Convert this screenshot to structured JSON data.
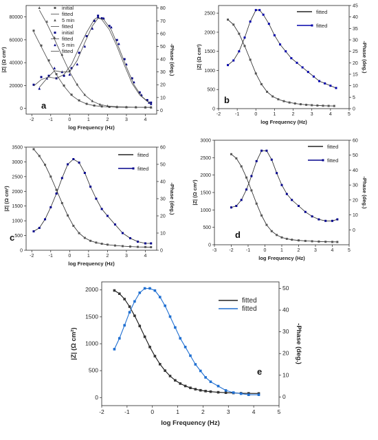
{
  "chart_data": [
    {
      "panel": "a",
      "type": "scatter",
      "xlabel": "log Frequency (Hz)",
      "ylabel": "|Z| (Ω cm²)",
      "y2label": "-Phase (deg.)",
      "xlim": [
        -2.3,
        4.6
      ],
      "ylim": [
        -5000,
        90000
      ],
      "y2lim": [
        -3,
        82
      ],
      "xticks": [
        "-2",
        "-1",
        "0",
        "1",
        "2",
        "3",
        "4"
      ],
      "yticks": [
        "0",
        "20000",
        "40000",
        "60000",
        "80000"
      ],
      "y2ticks": [
        "0",
        "10",
        "20",
        "30",
        "40",
        "50",
        "60",
        "70",
        "80"
      ],
      "legend": [
        "initial",
        "fitted",
        "5 min",
        "fitted",
        "initial",
        "fitted",
        "5 min",
        "fitted"
      ],
      "legend_position": "top-left",
      "series": [
        {
          "name": "initial",
          "axis": "left",
          "marker": "square",
          "color": "#555555",
          "x": [
            -1.9,
            -1.5,
            -1.1,
            -0.7,
            -0.3,
            0.1,
            0.5,
            0.9,
            1.3,
            1.7,
            2.1,
            2.5,
            3.0,
            3.5,
            4.0,
            4.3
          ],
          "y": [
            68000,
            55000,
            42000,
            30000,
            20000,
            12000,
            7000,
            4000,
            2500,
            1700,
            1300,
            1100,
            1000,
            950,
            900,
            880
          ]
        },
        {
          "name": "fitted",
          "axis": "left",
          "line": true,
          "color": "#444444",
          "x": [
            -1.9,
            -1.5,
            -1.1,
            -0.7,
            -0.3,
            0.1,
            0.5,
            0.9,
            1.3,
            1.7,
            2.1,
            2.5,
            3.0,
            3.5,
            4.0,
            4.3
          ],
          "y": [
            67000,
            54000,
            41000,
            29500,
            19500,
            11500,
            6800,
            3900,
            2400,
            1650,
            1250,
            1080,
            980,
            930,
            890,
            870
          ]
        },
        {
          "name": "5 min",
          "axis": "left",
          "marker": "triangle",
          "color": "#555555",
          "x": [
            -1.6,
            -1.2,
            -0.8,
            -0.4,
            0.0,
            0.4,
            0.8,
            1.2,
            1.6,
            2.0,
            2.5,
            3.0,
            3.5,
            4.0,
            4.3
          ],
          "y": [
            88000,
            76000,
            62000,
            47000,
            33000,
            21000,
            12000,
            6500,
            3500,
            2200,
            1500,
            1200,
            1050,
            950,
            900
          ]
        },
        {
          "name": "fitted",
          "axis": "left",
          "line": true,
          "color": "#444444",
          "x": [
            -1.6,
            -1.2,
            -0.8,
            -0.4,
            0.0,
            0.4,
            0.8,
            1.2,
            1.6,
            2.0,
            2.5,
            3.0,
            3.5,
            4.0,
            4.3
          ],
          "y": [
            86000,
            74000,
            60500,
            46000,
            32000,
            20500,
            11700,
            6300,
            3400,
            2150,
            1450,
            1170,
            1020,
            930,
            890
          ]
        },
        {
          "name": "initial",
          "axis": "right",
          "marker": "square",
          "color": "#000088",
          "x": [
            -1.9,
            -1.5,
            -1.1,
            -0.7,
            -0.3,
            0.1,
            0.5,
            0.9,
            1.3,
            1.5,
            1.7,
            2.1,
            2.5,
            2.9,
            3.3,
            3.7,
            4.1,
            4.3
          ],
          "y": [
            20,
            26,
            27,
            25,
            27,
            33,
            45,
            58,
            70,
            74,
            72,
            66,
            55,
            40,
            25,
            14,
            8,
            6
          ]
        },
        {
          "name": "fitted",
          "axis": "right",
          "line": true,
          "color": "#444444",
          "x": [
            -1.9,
            -1.5,
            -1.1,
            -0.7,
            -0.3,
            0.1,
            0.5,
            0.9,
            1.3,
            1.5,
            1.7,
            2.1,
            2.5,
            2.9,
            3.3,
            3.7,
            4.1,
            4.3
          ],
          "y": [
            19,
            24,
            26,
            25,
            28,
            36,
            49,
            61,
            71,
            73,
            71,
            63,
            50,
            35,
            21,
            12,
            7,
            5
          ]
        },
        {
          "name": "5 min",
          "axis": "right",
          "marker": "triangle",
          "color": "#000088",
          "x": [
            -1.6,
            -1.2,
            -0.8,
            -0.4,
            0.0,
            0.4,
            0.8,
            1.2,
            1.5,
            1.8,
            2.2,
            2.6,
            3.0,
            3.4,
            3.8,
            4.2,
            4.3
          ],
          "y": [
            17,
            25,
            33,
            30,
            28,
            36,
            50,
            64,
            73,
            72,
            65,
            52,
            36,
            22,
            12,
            6,
            5
          ]
        },
        {
          "name": "fitted",
          "axis": "right",
          "line": true,
          "color": "#444444",
          "x": [
            -1.6,
            -1.2,
            -0.8,
            -0.4,
            0.0,
            0.4,
            0.8,
            1.2,
            1.5,
            1.8,
            2.2,
            2.6,
            3.0,
            3.4,
            3.8,
            4.2,
            4.3
          ],
          "y": [
            18,
            25,
            31,
            30,
            30,
            39,
            53,
            66,
            72,
            71,
            63,
            49,
            34,
            20,
            11,
            6,
            5
          ]
        }
      ]
    },
    {
      "panel": "b",
      "type": "scatter",
      "xlabel": "log Frequency (Hz)",
      "ylabel": "|Z| (Ω cm²)",
      "y2label": "-Phase (deg.)",
      "xlim": [
        -2,
        5
      ],
      "ylim": [
        0,
        2700
      ],
      "y2lim": [
        0,
        45
      ],
      "xticks": [
        "-2",
        "-1",
        "0",
        "1",
        "2",
        "3",
        "4",
        "5"
      ],
      "yticks": [
        "0",
        "500",
        "1000",
        "1500",
        "2000",
        "2500"
      ],
      "y2ticks": [
        "0",
        "5",
        "10",
        "15",
        "20",
        "25",
        "30",
        "35",
        "40",
        "45"
      ],
      "legend": [
        "fitted",
        "fitted"
      ],
      "legend_position": "top-right",
      "series": [
        {
          "name": "fitted",
          "axis": "left",
          "marker": "square",
          "color": "#555555",
          "line": true,
          "line_color": "#222222",
          "x": [
            -1.5,
            -1.2,
            -0.9,
            -0.6,
            -0.3,
            0.0,
            0.3,
            0.6,
            0.9,
            1.2,
            1.5,
            1.8,
            2.1,
            2.4,
            2.7,
            3.0,
            3.3,
            3.6,
            3.9,
            4.2
          ],
          "y": [
            2330,
            2200,
            1960,
            1640,
            1280,
            920,
            640,
            440,
            320,
            245,
            195,
            160,
            135,
            115,
            100,
            90,
            82,
            76,
            72,
            70
          ]
        },
        {
          "name": "fitted",
          "axis": "right",
          "marker": "square",
          "color": "#0000aa",
          "line": true,
          "line_color": "#222222",
          "x": [
            -1.5,
            -1.2,
            -0.9,
            -0.6,
            -0.3,
            0.0,
            0.2,
            0.4,
            0.7,
            1.0,
            1.3,
            1.6,
            1.9,
            2.2,
            2.5,
            2.8,
            3.1,
            3.4,
            3.7,
            4.0,
            4.3
          ],
          "y": [
            19,
            21,
            25,
            31,
            38,
            43,
            43,
            41,
            37,
            32,
            28,
            25,
            22,
            20,
            18,
            16,
            14,
            12,
            11,
            10,
            9
          ]
        }
      ]
    },
    {
      "panel": "c",
      "type": "scatter",
      "xlabel": "log Frequency (Hz)",
      "ylabel": "|Z| (Ω cm²)",
      "y2label": "-Phase (deg.)",
      "xlim": [
        -2.3,
        4.6
      ],
      "ylim": [
        0,
        3500
      ],
      "y2lim": [
        0,
        60
      ],
      "xticks": [
        "-2",
        "-1",
        "0",
        "1",
        "2",
        "3",
        "4"
      ],
      "yticks": [
        "0",
        "500",
        "1000",
        "1500",
        "2000",
        "2500",
        "3000",
        "3500"
      ],
      "y2ticks": [
        "0",
        "10",
        "20",
        "30",
        "40",
        "50",
        "60"
      ],
      "legend": [
        "fitted",
        "fitted"
      ],
      "legend_position": "top-right",
      "series": [
        {
          "name": "fitted",
          "axis": "left",
          "marker": "square",
          "color": "#555555",
          "line": true,
          "line_color": "#222222",
          "x": [
            -1.9,
            -1.6,
            -1.3,
            -1.0,
            -0.7,
            -0.4,
            -0.1,
            0.2,
            0.5,
            0.8,
            1.1,
            1.4,
            1.7,
            2.0,
            2.4,
            2.8,
            3.2,
            3.6,
            4.0,
            4.3
          ],
          "y": [
            3430,
            3200,
            2900,
            2500,
            2050,
            1600,
            1180,
            830,
            580,
            420,
            320,
            260,
            220,
            190,
            160,
            140,
            125,
            115,
            110,
            105
          ]
        },
        {
          "name": "fitted",
          "axis": "right",
          "marker": "square",
          "color": "#00008b",
          "line": true,
          "line_color": "#222222",
          "x": [
            -1.9,
            -1.6,
            -1.3,
            -1.0,
            -0.7,
            -0.4,
            -0.1,
            0.2,
            0.5,
            0.8,
            1.1,
            1.4,
            1.7,
            2.0,
            2.4,
            2.8,
            3.2,
            3.6,
            4.0,
            4.3
          ],
          "y": [
            11,
            13,
            18,
            25,
            33,
            42,
            50,
            53,
            51,
            45,
            37,
            30,
            24,
            20,
            15,
            10,
            7,
            5,
            4,
            4
          ]
        }
      ]
    },
    {
      "panel": "d",
      "type": "scatter",
      "xlabel": "log Frequency (Hz)",
      "ylabel": "|Z| (Ω cm²)",
      "y2label": "-Phase (deg.)",
      "xlim": [
        -3,
        5
      ],
      "ylim": [
        0,
        3000
      ],
      "y2lim": [
        -10,
        60
      ],
      "xticks": [
        "-3",
        "-2",
        "-1",
        "0",
        "1",
        "2",
        "3",
        "4",
        "5"
      ],
      "yticks": [
        "0",
        "500",
        "1000",
        "1500",
        "2000",
        "2500",
        "3000"
      ],
      "y2ticks": [
        "0",
        "10",
        "20",
        "30",
        "40",
        "50",
        "60"
      ],
      "legend": [
        "fitted",
        "fitted"
      ],
      "legend_position": "top-right",
      "series": [
        {
          "name": "fitted",
          "axis": "left",
          "marker": "square",
          "color": "#555555",
          "line": true,
          "line_color": "#222222",
          "x": [
            -2.0,
            -1.7,
            -1.4,
            -1.1,
            -0.8,
            -0.5,
            -0.2,
            0.1,
            0.4,
            0.7,
            1.0,
            1.3,
            1.6,
            2.0,
            2.4,
            2.8,
            3.2,
            3.6,
            4.0,
            4.3
          ],
          "y": [
            2600,
            2480,
            2250,
            1930,
            1560,
            1180,
            840,
            570,
            390,
            280,
            210,
            170,
            145,
            125,
            110,
            100,
            92,
            86,
            82,
            80
          ]
        },
        {
          "name": "fitted",
          "axis": "right",
          "marker": "square",
          "color": "#00008b",
          "line": true,
          "line_color": "#222222",
          "x": [
            -2.0,
            -1.7,
            -1.4,
            -1.1,
            -0.8,
            -0.5,
            -0.2,
            0.1,
            0.4,
            0.7,
            1.0,
            1.3,
            1.6,
            2.0,
            2.4,
            2.8,
            3.2,
            3.6,
            4.0,
            4.3
          ],
          "y": [
            15,
            16,
            20,
            27,
            36,
            46,
            53,
            53,
            47,
            38,
            30,
            24,
            20,
            16,
            12,
            9,
            7,
            6,
            6,
            7
          ]
        }
      ]
    },
    {
      "panel": "e",
      "type": "scatter",
      "xlabel": "log Frequency (Hz)",
      "ylabel": "|Z| (Ω cm²)",
      "y2label": "-Phase (deg.)",
      "xlim": [
        -2,
        5
      ],
      "ylim": [
        -150,
        2150
      ],
      "y2lim": [
        -4,
        53
      ],
      "xticks": [
        "-2",
        "-1",
        "0",
        "1",
        "2",
        "3",
        "4",
        "5"
      ],
      "yticks": [
        "0",
        "500",
        "1000",
        "1500",
        "2000"
      ],
      "y2ticks": [
        "0",
        "10",
        "20",
        "30",
        "40",
        "50"
      ],
      "legend": [
        "fitted",
        "fitted"
      ],
      "legend_position": "top-right",
      "series": [
        {
          "name": "fitted",
          "axis": "left",
          "marker": "square",
          "color": "#333333",
          "line": true,
          "line_color": "#111111",
          "x": [
            -1.5,
            -1.3,
            -1.1,
            -0.9,
            -0.7,
            -0.5,
            -0.3,
            -0.1,
            0.1,
            0.3,
            0.5,
            0.7,
            0.9,
            1.1,
            1.3,
            1.5,
            1.7,
            1.9,
            2.1,
            2.3,
            2.6,
            2.9,
            3.2,
            3.5,
            3.8,
            4.2
          ],
          "y": [
            1990,
            1930,
            1830,
            1690,
            1520,
            1330,
            1130,
            940,
            770,
            620,
            500,
            400,
            320,
            260,
            215,
            180,
            155,
            135,
            120,
            110,
            98,
            90,
            85,
            80,
            78,
            76
          ]
        },
        {
          "name": "fitted",
          "axis": "right",
          "marker": "square",
          "color": "#1f6fd1",
          "line": true,
          "line_color": "#1f6fd1",
          "x": [
            -1.5,
            -1.3,
            -1.1,
            -0.9,
            -0.7,
            -0.5,
            -0.3,
            -0.1,
            0.1,
            0.3,
            0.5,
            0.7,
            0.9,
            1.1,
            1.3,
            1.5,
            1.7,
            1.9,
            2.1,
            2.3,
            2.6,
            2.9,
            3.2,
            3.5,
            3.8,
            4.2
          ],
          "y": [
            22,
            27,
            33,
            39,
            44,
            48,
            50,
            50,
            49,
            46,
            42,
            37,
            32,
            27,
            23,
            19,
            15,
            12,
            9,
            7,
            5,
            3,
            2,
            1.5,
            1,
            1
          ]
        }
      ]
    }
  ],
  "panel_labels": [
    "a",
    "b",
    "c",
    "d",
    "e"
  ],
  "colors": {
    "gray_series": "#555555",
    "navy_series": "#000088",
    "blue_series": "#1f6fd1",
    "axis_right_blue": "#1f6fd1"
  }
}
